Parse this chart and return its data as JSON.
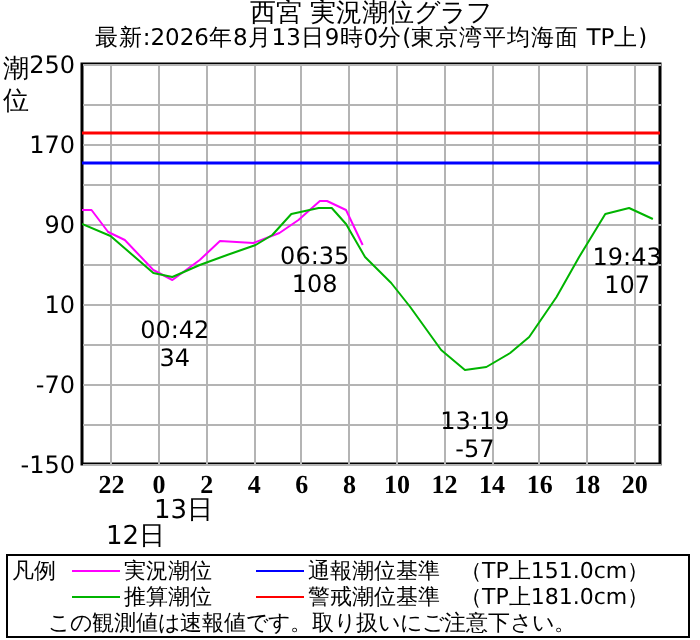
{
  "chart_data": {
    "type": "line",
    "title": "西宮 実況潮位グラフ",
    "subtitle": "最新:2026年8月13日9時0分(東京湾平均海面 TP上)",
    "ylabel": "潮位",
    "legend_title": "凡例",
    "series": [
      {
        "name": "実況潮位",
        "color": "#ff00ff",
        "x": [
          "2026-08-12T20:48",
          "2026-08-12T21:12",
          "2026-08-12T21:54",
          "2026-08-12T22:36",
          "2026-08-12T23:48",
          "2026-08-13T00:36",
          "2026-08-13T01:45",
          "2026-08-13T02:36",
          "2026-08-13T04:00",
          "2026-08-13T05:06",
          "2026-08-13T05:54",
          "2026-08-13T06:48",
          "2026-08-13T07:06",
          "2026-08-13T07:54",
          "2026-08-13T08:36"
        ],
        "values": [
          104,
          104,
          82,
          74,
          44,
          34,
          54,
          73,
          71,
          81,
          94,
          113,
          113,
          104,
          69
        ]
      },
      {
        "name": "推算潮位",
        "color": "#00b400",
        "x": [
          "2026-08-12T20:48",
          "2026-08-12T22:00",
          "2026-08-12T23:48",
          "2026-08-13T00:36",
          "2026-08-13T01:45",
          "2026-08-13T02:54",
          "2026-08-13T04:06",
          "2026-08-13T04:48",
          "2026-08-13T05:36",
          "2026-08-13T06:45",
          "2026-08-13T07:18",
          "2026-08-13T07:54",
          "2026-08-13T08:42",
          "2026-08-13T09:48",
          "2026-08-13T10:36",
          "2026-08-13T11:54",
          "2026-08-13T12:54",
          "2026-08-13T13:48",
          "2026-08-13T14:48",
          "2026-08-13T15:36",
          "2026-08-13T16:45",
          "2026-08-13T17:42",
          "2026-08-13T18:48",
          "2026-08-13T19:48",
          "2026-08-13T20:48"
        ],
        "values": [
          90,
          78,
          41,
          37,
          49,
          59,
          69,
          79,
          100,
          106,
          106,
          90,
          57,
          31,
          7,
          -36,
          -56,
          -53,
          -39,
          -23,
          17,
          57,
          100,
          106,
          95
        ]
      }
    ],
    "xlim": [
      "2026-08-12T20:48",
      "2026-08-13T21:06"
    ],
    "xticks": [
      {
        "value": "2026-08-12T22:00",
        "label": "22"
      },
      {
        "value": "2026-08-13T00:00",
        "label": "0"
      },
      {
        "value": "2026-08-13T02:00",
        "label": "2"
      },
      {
        "value": "2026-08-13T04:00",
        "label": "4"
      },
      {
        "value": "2026-08-13T06:00",
        "label": "6"
      },
      {
        "value": "2026-08-13T08:00",
        "label": "8"
      },
      {
        "value": "2026-08-13T10:00",
        "label": "10"
      },
      {
        "value": "2026-08-13T12:00",
        "label": "12"
      },
      {
        "value": "2026-08-13T14:00",
        "label": "14"
      },
      {
        "value": "2026-08-13T16:00",
        "label": "16"
      },
      {
        "value": "2026-08-13T18:00",
        "label": "18"
      },
      {
        "value": "2026-08-13T20:00",
        "label": "20"
      }
    ],
    "ylim": [
      -150,
      250
    ],
    "yticks": [
      -150,
      {
        "value": -110,
        "label": null
      },
      -70,
      {
        "value": -30,
        "label": null
      },
      10,
      {
        "value": 50,
        "label": null
      },
      90,
      {
        "value": 130,
        "label": null
      },
      170,
      {
        "value": 210,
        "label": null
      },
      250
    ],
    "grid": true,
    "legend": "bottom",
    "line_style": "solid",
    "ref_lines": [
      {
        "axis": "y",
        "value": 151,
        "label": "通報潮位基準",
        "color": "#0000ff"
      },
      {
        "axis": "y",
        "value": 181,
        "label": "警戒潮位基準",
        "color": "#ff0000"
      }
    ],
    "annotations": [
      {
        "text": "00:42\n34",
        "x": "2026-08-13T00:42",
        "y": 34
      },
      {
        "text": "06:35\n108",
        "x": "2026-08-13T06:35",
        "y": 108
      },
      {
        "text": "13:19\n-57",
        "x": "2026-08-13T13:19",
        "y": -57
      },
      {
        "text": "19:43\n107",
        "x": "2026-08-13T19:43",
        "y": 107
      },
      "13日",
      "12日",
      "（TP上151.0cm）",
      "（TP上181.0cm）",
      "この観測値は速報値です。取り扱いにご注意下さい。"
    ]
  }
}
